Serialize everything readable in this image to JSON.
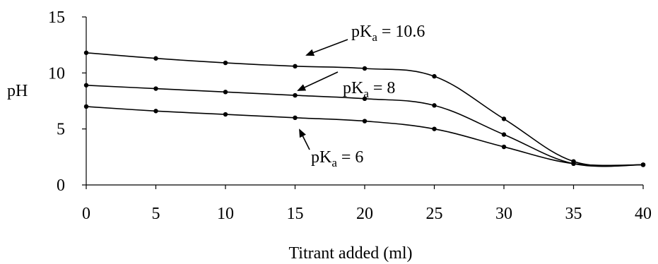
{
  "chart_data": {
    "type": "line",
    "title": "",
    "xlabel": "Titrant added (ml)",
    "ylabel": "pH",
    "x": [
      0,
      5,
      10,
      15,
      20,
      25,
      30,
      35,
      40
    ],
    "xlim": [
      0,
      40
    ],
    "ylim": [
      0,
      15
    ],
    "xticks": [
      0,
      5,
      10,
      15,
      20,
      25,
      30,
      35,
      40
    ],
    "yticks": [
      0,
      5,
      10,
      15
    ],
    "grid": false,
    "legend": "none",
    "series": [
      {
        "values": [
          11.8,
          11.3,
          10.9,
          10.6,
          10.4,
          9.7,
          5.9,
          2.1,
          1.8
        ]
      },
      {
        "values": [
          8.9,
          8.6,
          8.3,
          8.0,
          7.7,
          7.1,
          4.5,
          1.9,
          1.8
        ]
      },
      {
        "values": [
          7.0,
          6.6,
          6.3,
          6.0,
          5.7,
          5.0,
          3.4,
          1.9,
          1.8
        ]
      }
    ],
    "annotations": [
      {
        "base": "pK",
        "sub": "a",
        "rest": " = 10.6",
        "series": 0
      },
      {
        "base": "pK",
        "sub": "a",
        "rest": " = 8",
        "series": 1
      },
      {
        "base": "pK",
        "sub": "a",
        "rest": " = 6",
        "series": 2
      }
    ]
  }
}
